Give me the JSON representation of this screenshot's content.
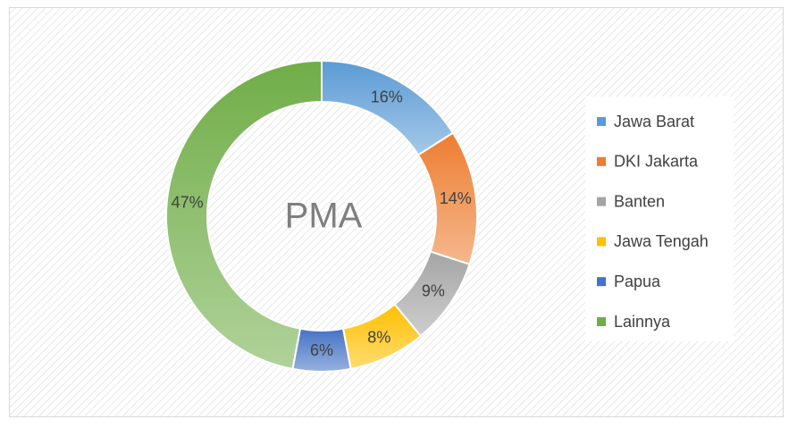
{
  "chart_data": {
    "type": "donut",
    "title": "PMA",
    "categories": [
      "Jawa Barat",
      "DKI Jakarta",
      "Banten",
      "Jawa Tengah",
      "Papua",
      "Lainnya"
    ],
    "values": [
      16,
      14,
      9,
      8,
      6,
      47
    ],
    "value_labels": [
      "16%",
      "14%",
      "9%",
      "8%",
      "6%",
      "47%"
    ],
    "colors": [
      "#5b9bd5",
      "#ed7d31",
      "#a5a5a5",
      "#ffc000",
      "#4472c4",
      "#70ad47"
    ],
    "legend": "right"
  }
}
